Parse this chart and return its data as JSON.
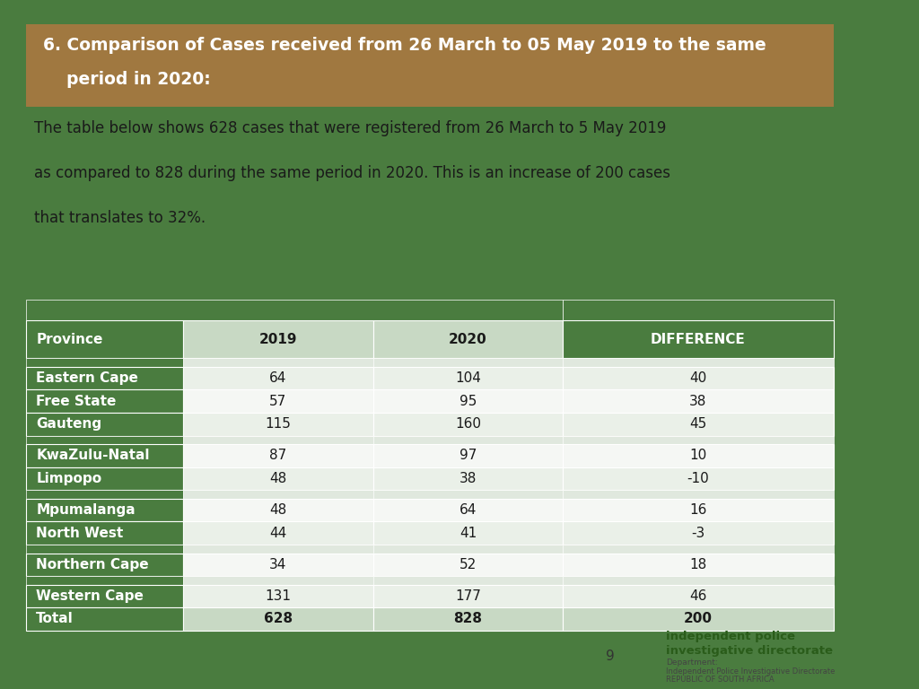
{
  "title_line1": "6. Comparison of Cases received from 26 March to 05 May 2019 to the same",
  "title_line2": "    period in 2020:",
  "title_bg_color": "#A07840",
  "title_text_color": "#FFFFFF",
  "body_text_line1": "The table below shows 628 cases that were registered from 26 March to 5 May 2019",
  "body_text_line2": "as compared to 828 during the same period in 2020. This is an increase of 200 cases",
  "body_text_line3": "that translates to 32%.",
  "body_text_color": "#1a1a1a",
  "background_color": "#FFFFFF",
  "outer_bg_color": "#4a7c3f",
  "col_headers": [
    "Province",
    "2019",
    "2020",
    "DIFFERENCE"
  ],
  "col_header_text_color": [
    "#FFFFFF",
    "#1a1a1a",
    "#1a1a1a",
    "#FFFFFF"
  ],
  "green_header_bg": "#4a7c3f",
  "light_green_header_bg": "#c8d9c4",
  "rows": [
    [
      "Eastern Cape",
      "64",
      "104",
      "40"
    ],
    [
      "Free State",
      "57",
      "95",
      "38"
    ],
    [
      "Gauteng",
      "115",
      "160",
      "45"
    ],
    [
      "KwaZulu-Natal",
      "87",
      "97",
      "10"
    ],
    [
      "Limpopo",
      "48",
      "38",
      "-10"
    ],
    [
      "Mpumalanga",
      "48",
      "64",
      "16"
    ],
    [
      "North West",
      "44",
      "41",
      "-3"
    ],
    [
      "Northern Cape",
      "34",
      "52",
      "18"
    ],
    [
      "Western Cape",
      "131",
      "177",
      "46"
    ],
    [
      "Total",
      "628",
      "828",
      "200"
    ]
  ],
  "row_has_spacer": [
    true,
    false,
    false,
    true,
    false,
    true,
    false,
    true,
    true,
    false
  ],
  "province_col_bg": "#4a7c3f",
  "province_col_text": "#FFFFFF",
  "data_row_bg_even": "#eaf0e8",
  "data_row_bg_odd": "#f5f7f4",
  "spacer_bg": "#e0e8de",
  "total_row_bg": "#c8d9c4",
  "total_row_text": "#1a1a1a",
  "page_number": "9",
  "logo_text_line1": "independent police",
  "logo_text_line2": "investigative directorate",
  "logo_sub1": "Department:",
  "logo_sub2": "Independent Police Investigative Directorate",
  "logo_sub3": "REPUBLIC OF SOUTH AFRICA"
}
